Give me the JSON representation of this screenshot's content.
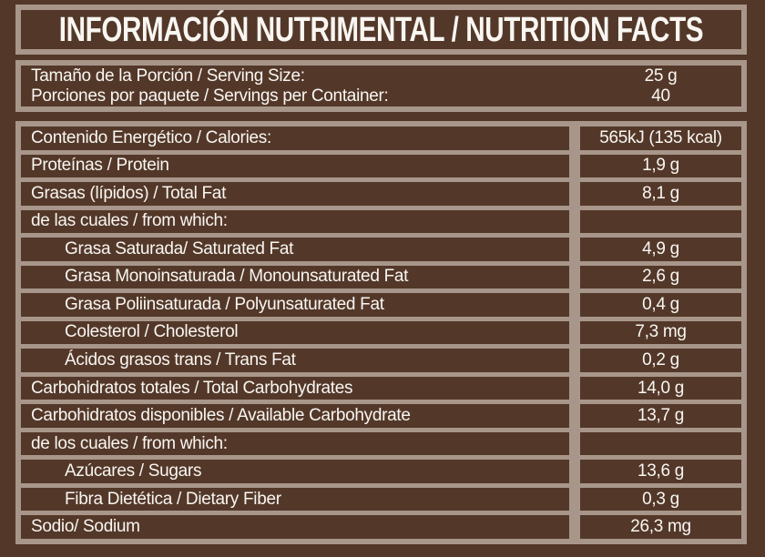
{
  "colors": {
    "background": "#533829",
    "border": "#a8968a",
    "text": "#f9f6f2"
  },
  "title": "INFORMACIÓN NUTRIMENTAL / NUTRITION FACTS",
  "serving": {
    "rows": [
      {
        "label": "Tamaño de la Porción / Serving Size:",
        "value": "25 g"
      },
      {
        "label": "Porciones por paquete / Servings per Container:",
        "value": "40"
      }
    ]
  },
  "table": {
    "rows": [
      {
        "label": "Contenido Energético / Calories:",
        "value": "565kJ (135 kcal)",
        "indent": false
      },
      {
        "label": "Proteínas / Protein",
        "value": "1,9 g",
        "indent": false
      },
      {
        "label": "Grasas (lípidos) / Total Fat",
        "value": "8,1 g",
        "indent": false
      },
      {
        "label": "de las cuales / from which:",
        "value": "",
        "indent": false
      },
      {
        "label": "Grasa Saturada/ Saturated Fat",
        "value": "4,9 g",
        "indent": true
      },
      {
        "label": "Grasa Monoinsaturada / Monounsaturated Fat",
        "value": "2,6 g",
        "indent": true
      },
      {
        "label": "Grasa Poliinsaturada / Polyunsaturated Fat",
        "value": "0,4 g",
        "indent": true
      },
      {
        "label": "Colesterol / Cholesterol",
        "value": "7,3 mg",
        "indent": true
      },
      {
        "label": "Ácidos grasos trans / Trans Fat",
        "value": "0,2 g",
        "indent": true
      },
      {
        "label": "Carbohidratos totales / Total Carbohydrates",
        "value": "14,0 g",
        "indent": false
      },
      {
        "label": "Carbohidratos disponibles / Available Carbohydrate",
        "value": "13,7 g",
        "indent": false
      },
      {
        "label": "de los cuales / from which:",
        "value": "",
        "indent": false
      },
      {
        "label": "Azúcares / Sugars",
        "value": "13,6 g",
        "indent": true
      },
      {
        "label": "Fibra Dietética / Dietary Fiber",
        "value": "0,3 g",
        "indent": true
      },
      {
        "label": "Sodio/ Sodium",
        "value": "26,3 mg",
        "indent": false
      }
    ]
  }
}
